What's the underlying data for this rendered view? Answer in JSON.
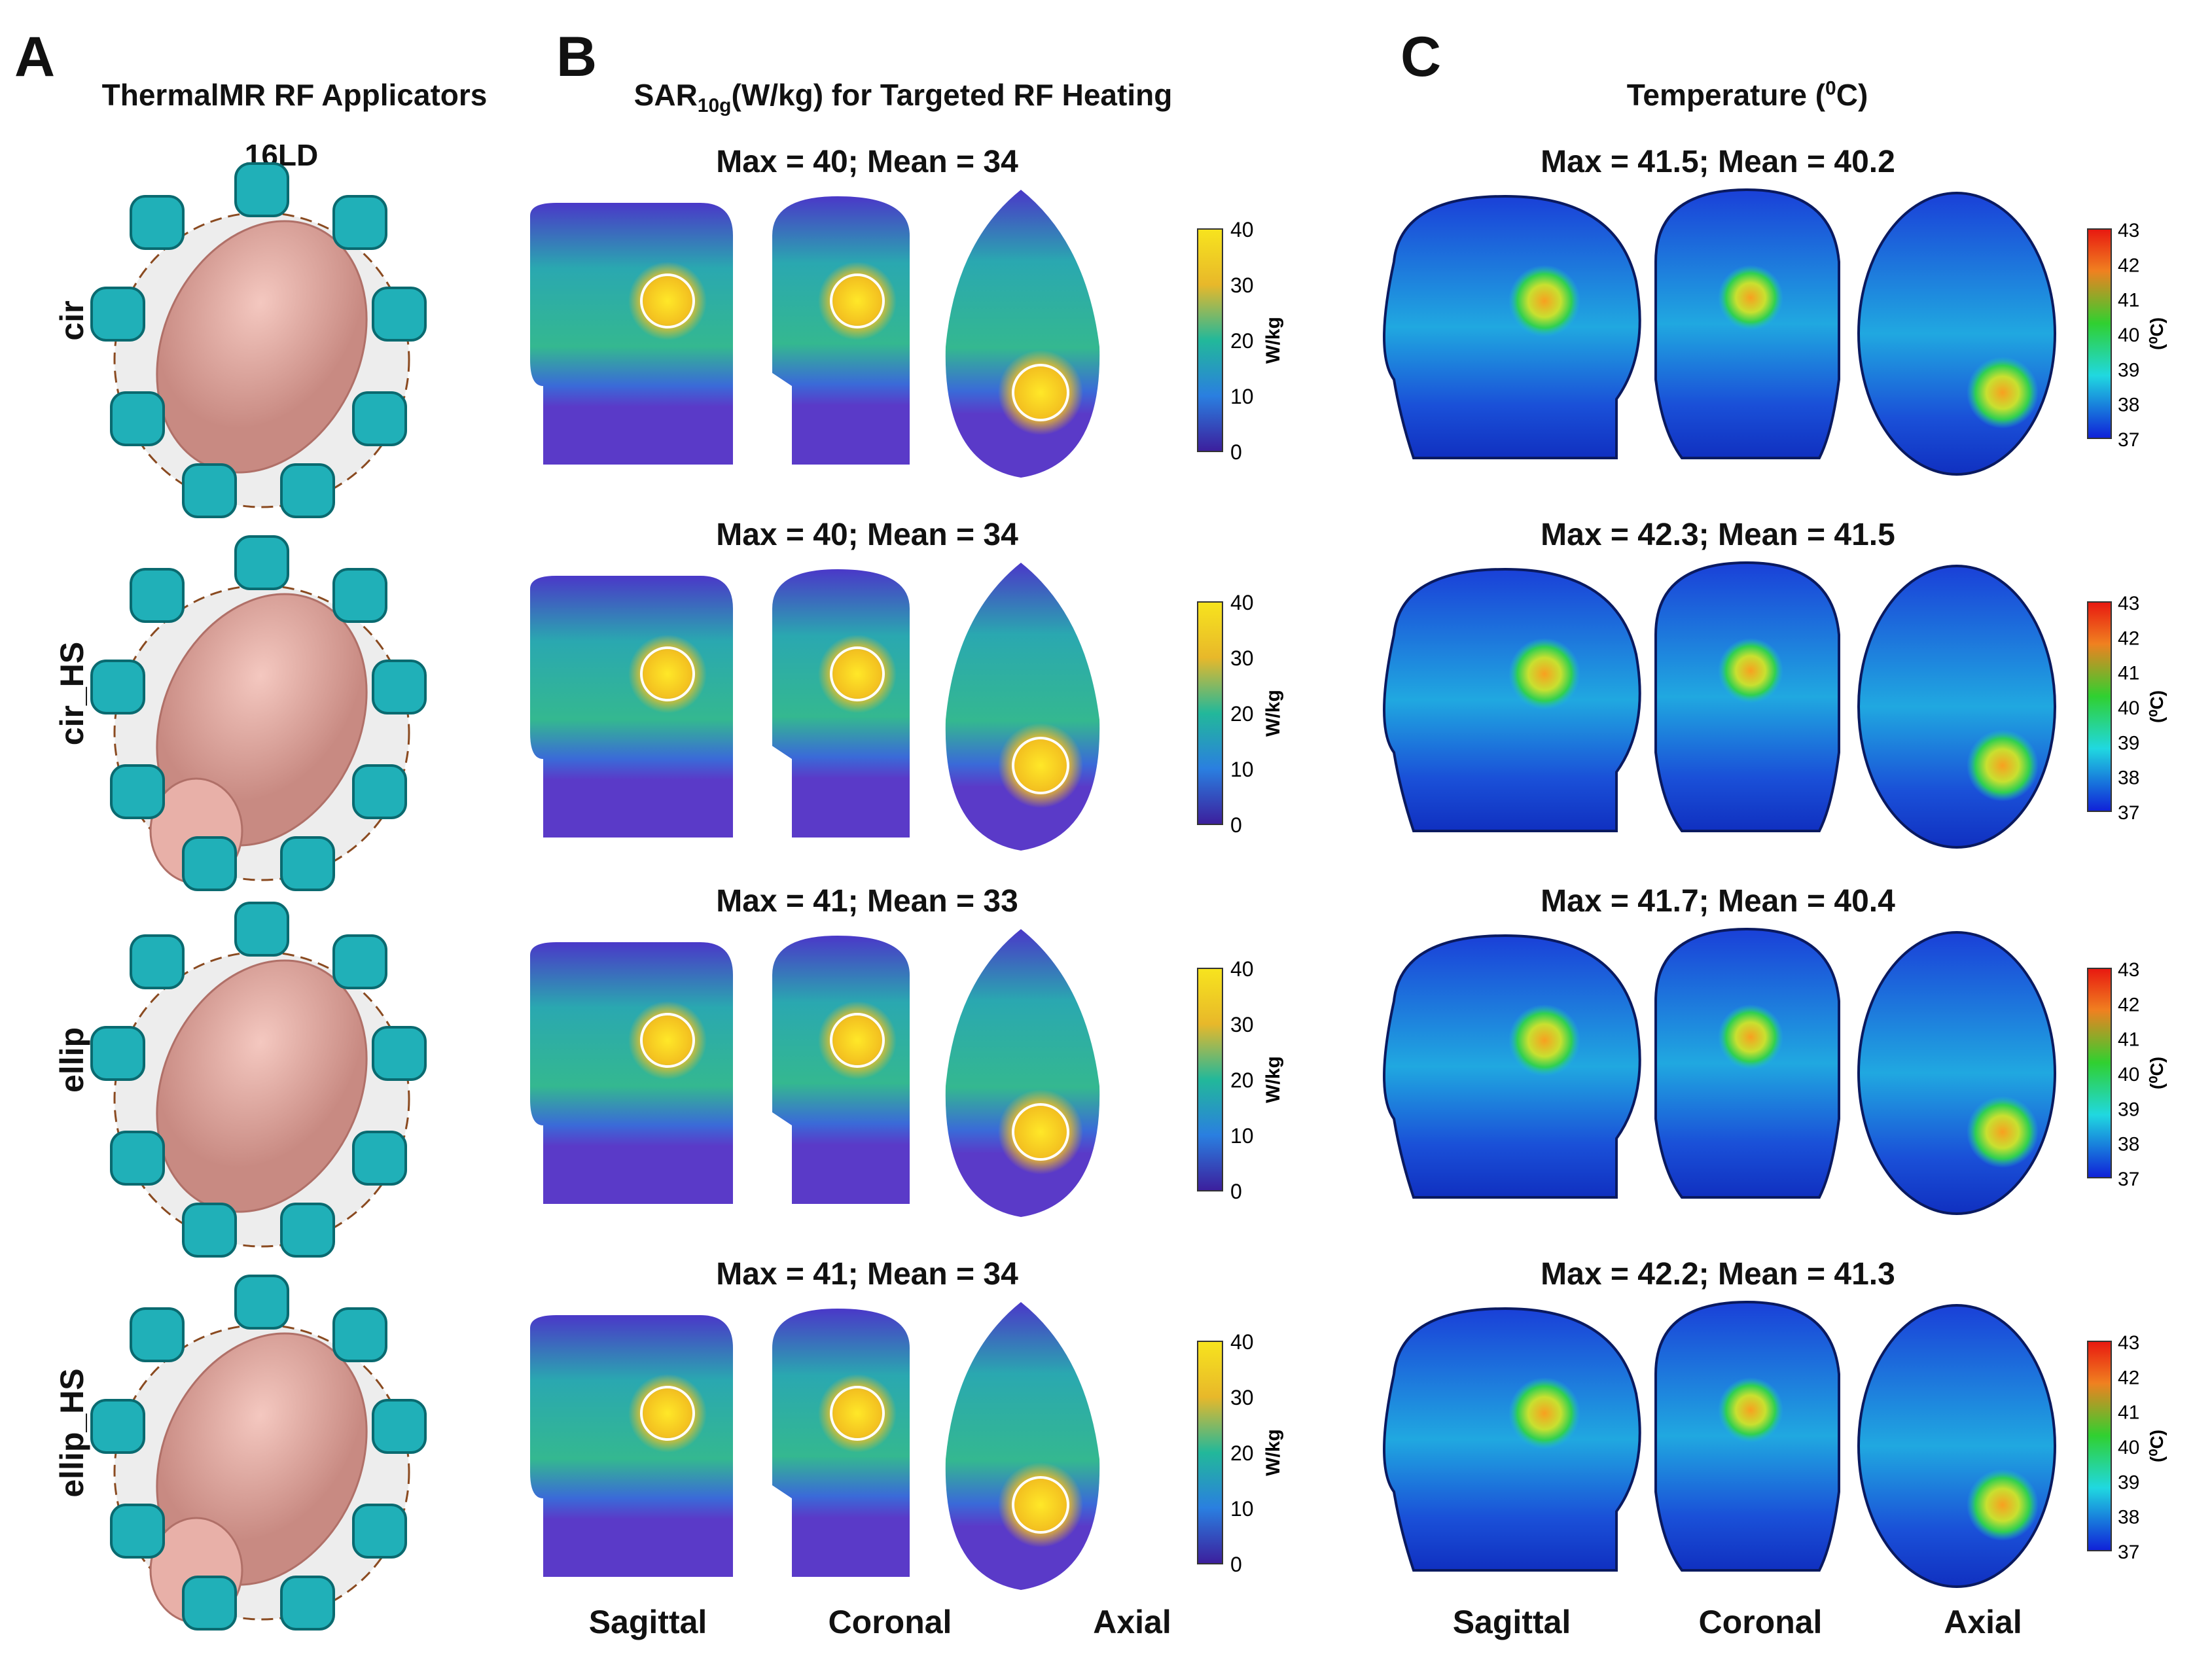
{
  "panels": {
    "A": {
      "letter": "A",
      "title": "ThermalMR RF Applicators",
      "subtitle": "16LD"
    },
    "B": {
      "letter": "B",
      "title_prefix": "SAR",
      "title_sub": "10g",
      "title_suffix": "(W/kg) for Targeted RF Heating"
    },
    "C": {
      "letter": "C",
      "title_prefix": "Temperature (",
      "title_sup": "0",
      "title_suffix": "C)"
    }
  },
  "rows": [
    {
      "label": "cir",
      "sar": "Max = 40; Mean = 34",
      "temp": "Max = 41.5; Mean = 40.2"
    },
    {
      "label": "cir_HS",
      "sar": "Max = 40; Mean = 34",
      "temp": "Max = 42.3; Mean = 41.5"
    },
    {
      "label": "ellip",
      "sar": "Max = 41; Mean = 33",
      "temp": "Max = 41.7; Mean = 40.4"
    },
    {
      "label": "ellip_HS",
      "sar": "Max = 41; Mean = 34",
      "temp": "Max = 42.2; Mean = 41.3"
    }
  ],
  "views": {
    "sagittal": "Sagittal",
    "coronal": "Coronal",
    "axial": "Axial"
  },
  "sar_colorbar": {
    "ticks": [
      "40",
      "30",
      "20",
      "10",
      "0"
    ],
    "unit": "W/kg"
  },
  "temp_colorbar": {
    "ticks": [
      "43",
      "42",
      "41",
      "40",
      "39",
      "38",
      "37"
    ],
    "unit": "(⁰C)"
  },
  "colors": {
    "sar_low": "#3a2a9c",
    "sar_mid": "#1fb0a0",
    "sar_high": "#f5e020",
    "temp_low": "#1030d0",
    "temp_high": "#e02010",
    "coil": "#20b0b8",
    "head": "#e0a8a0"
  }
}
